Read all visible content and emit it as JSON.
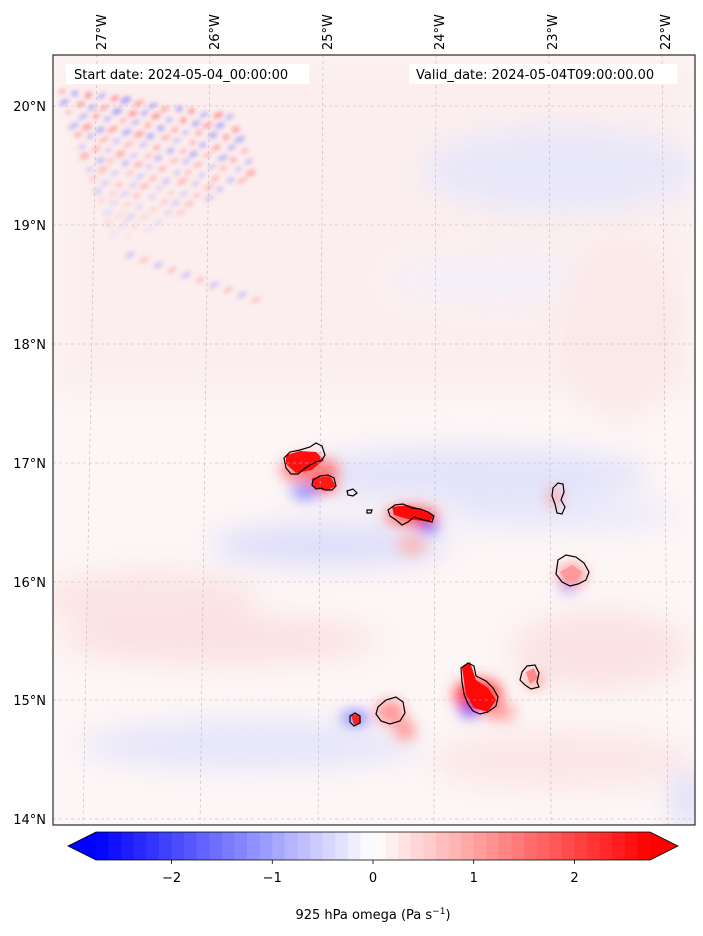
{
  "map": {
    "header": {
      "start_text": "Start date: 2024-05-04_00:00:00",
      "valid_text": "Valid_date: 2024-05-04T09:00:00.00"
    },
    "extent": {
      "lon_min": -27.35,
      "lon_max": -21.8,
      "lat_min": 13.95,
      "lat_max": 20.45
    },
    "lon_ticks": [
      {
        "value": -27,
        "label": "27°W"
      },
      {
        "value": -26,
        "label": "26°W"
      },
      {
        "value": -25,
        "label": "25°W"
      },
      {
        "value": -24,
        "label": "24°W"
      },
      {
        "value": -23,
        "label": "23°W"
      },
      {
        "value": -22,
        "label": "22°W"
      }
    ],
    "lat_ticks": [
      {
        "value": 20,
        "label": "20°N"
      },
      {
        "value": 19,
        "label": "19°N"
      },
      {
        "value": 18,
        "label": "18°N"
      },
      {
        "value": 17,
        "label": "17°N"
      },
      {
        "value": 16,
        "label": "16°N"
      },
      {
        "value": 15,
        "label": "15°N"
      },
      {
        "value": 14,
        "label": "14°N"
      }
    ],
    "gridlines": true,
    "field": "925 hPa omega",
    "colormap": "bwr",
    "color_negative": "#0000ff",
    "color_zero": "#ffffff",
    "color_positive": "#ff0000"
  },
  "colorbar": {
    "min": -2.75,
    "max": 2.75,
    "extend": "both",
    "ticks": [
      {
        "value": -2,
        "label": "−2"
      },
      {
        "value": -1,
        "label": "−1"
      },
      {
        "value": 0,
        "label": "0"
      },
      {
        "value": 1,
        "label": "1"
      },
      {
        "value": 2,
        "label": "2"
      }
    ],
    "label_main": "925 hPa omega (Pa s",
    "label_exp": "−1",
    "label_close": ")"
  }
}
